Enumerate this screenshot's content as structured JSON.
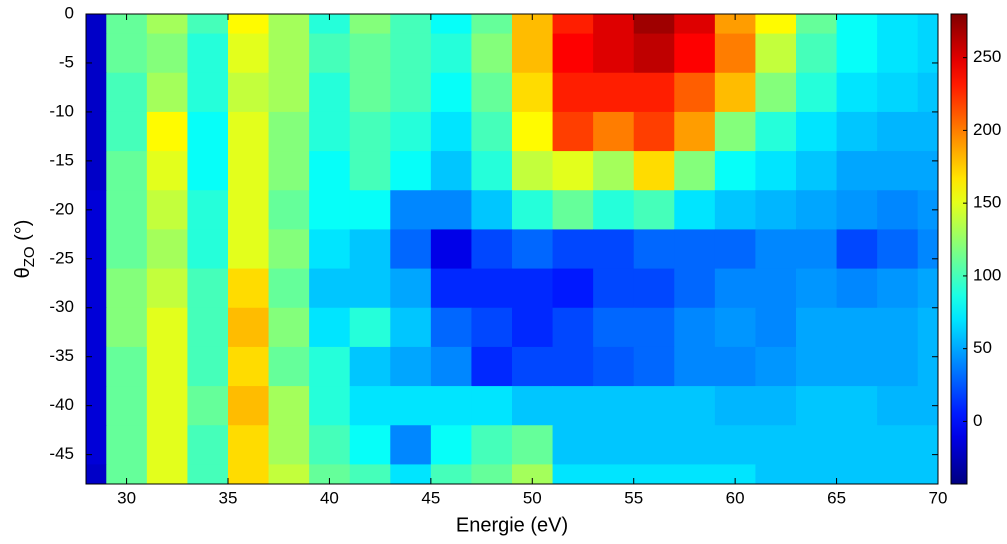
{
  "chart_data": {
    "type": "heatmap",
    "xlabel": "Energie (eV)",
    "ylabel": [
      "θ",
      "ZO",
      " (°)"
    ],
    "colormap": "jet",
    "x": [
      28,
      30,
      32,
      34,
      36,
      38,
      40,
      42,
      44,
      46,
      48,
      50,
      52,
      54,
      56,
      58,
      60,
      62,
      64,
      66,
      68,
      70
    ],
    "y": [
      0,
      -4,
      -8,
      -12,
      -16,
      -20,
      -24,
      -28,
      -32,
      -36,
      -40,
      -44,
      -48
    ],
    "z": [
      [
        -20,
        110,
        130,
        100,
        160,
        130,
        90,
        120,
        100,
        80,
        110,
        180,
        230,
        250,
        270,
        250,
        190,
        160,
        110,
        80,
        70,
        65
      ],
      [
        -20,
        110,
        120,
        90,
        150,
        130,
        100,
        110,
        100,
        90,
        120,
        180,
        240,
        250,
        260,
        240,
        200,
        140,
        100,
        80,
        70,
        65
      ],
      [
        -20,
        100,
        130,
        90,
        140,
        130,
        90,
        110,
        100,
        80,
        110,
        170,
        230,
        230,
        230,
        210,
        180,
        120,
        90,
        70,
        65,
        60
      ],
      [
        -20,
        100,
        160,
        80,
        150,
        120,
        90,
        100,
        90,
        70,
        100,
        160,
        220,
        200,
        220,
        190,
        120,
        90,
        70,
        60,
        55,
        55
      ],
      [
        -20,
        110,
        150,
        80,
        150,
        120,
        80,
        100,
        80,
        60,
        90,
        140,
        150,
        130,
        170,
        120,
        80,
        70,
        60,
        50,
        50,
        50
      ],
      [
        -15,
        110,
        140,
        90,
        150,
        110,
        80,
        80,
        40,
        40,
        60,
        90,
        110,
        90,
        100,
        70,
        60,
        55,
        50,
        45,
        40,
        45
      ],
      [
        -15,
        110,
        130,
        90,
        150,
        120,
        70,
        60,
        30,
        -10,
        20,
        30,
        20,
        20,
        30,
        30,
        30,
        40,
        40,
        20,
        30,
        40
      ],
      [
        -15,
        120,
        140,
        100,
        170,
        110,
        60,
        60,
        50,
        10,
        10,
        10,
        5,
        20,
        20,
        30,
        40,
        40,
        45,
        40,
        45,
        50
      ],
      [
        -15,
        120,
        150,
        100,
        180,
        120,
        70,
        90,
        60,
        30,
        20,
        10,
        20,
        30,
        30,
        40,
        45,
        40,
        50,
        50,
        50,
        55
      ],
      [
        -15,
        110,
        150,
        100,
        170,
        110,
        90,
        60,
        50,
        40,
        10,
        20,
        20,
        25,
        30,
        40,
        40,
        45,
        50,
        50,
        50,
        55
      ],
      [
        -15,
        110,
        150,
        110,
        180,
        130,
        90,
        70,
        70,
        70,
        70,
        60,
        60,
        60,
        60,
        60,
        55,
        55,
        60,
        60,
        55,
        55
      ],
      [
        -15,
        110,
        150,
        100,
        170,
        130,
        100,
        80,
        40,
        80,
        100,
        110,
        60,
        60,
        60,
        60,
        60,
        60,
        60,
        60,
        60,
        60
      ],
      [
        -20,
        110,
        150,
        100,
        170,
        140,
        110,
        100,
        70,
        100,
        110,
        130,
        70,
        70,
        70,
        70,
        70,
        60,
        60,
        60,
        60,
        60
      ]
    ],
    "xlim": [
      28,
      70
    ],
    "xticks": [
      30,
      35,
      40,
      45,
      50,
      55,
      60,
      65,
      70
    ],
    "ylim": [
      -48,
      0
    ],
    "yticks": [
      0,
      -5,
      -10,
      -15,
      -20,
      -25,
      -30,
      -35,
      -40,
      -45
    ],
    "clim": [
      -43,
      280
    ],
    "cticks": [
      0,
      50,
      100,
      150,
      200,
      250
    ]
  }
}
